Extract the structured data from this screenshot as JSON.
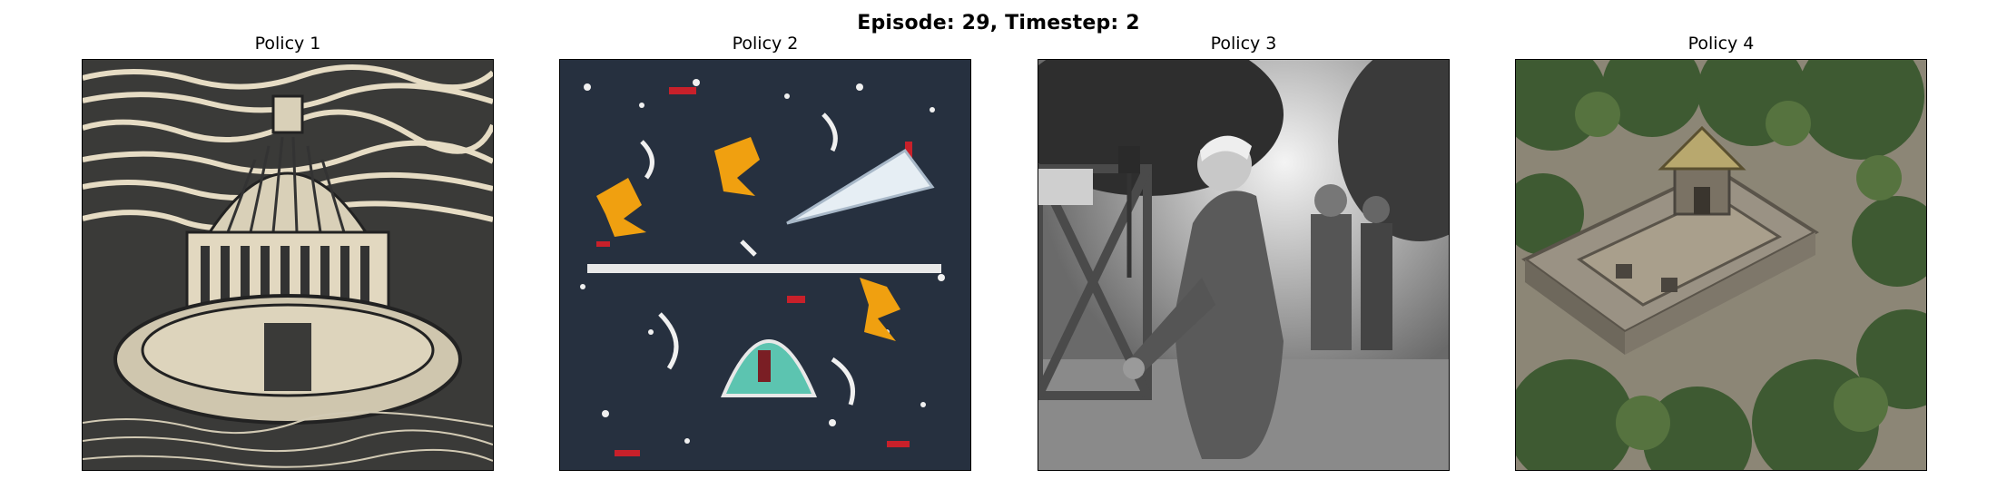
{
  "figure": {
    "suptitle": "Episode: 29, Timestep: 2"
  },
  "panels": [
    {
      "title": "Policy 1",
      "image": "linocut-domed-building"
    },
    {
      "title": "Policy 2",
      "image": "dark-tapestry-with-orange-figures"
    },
    {
      "title": "Policy 3",
      "image": "black-and-white-photo-of-old-man"
    },
    {
      "title": "Policy 4",
      "image": "aerial-stone-temple-in-forest"
    }
  ]
}
